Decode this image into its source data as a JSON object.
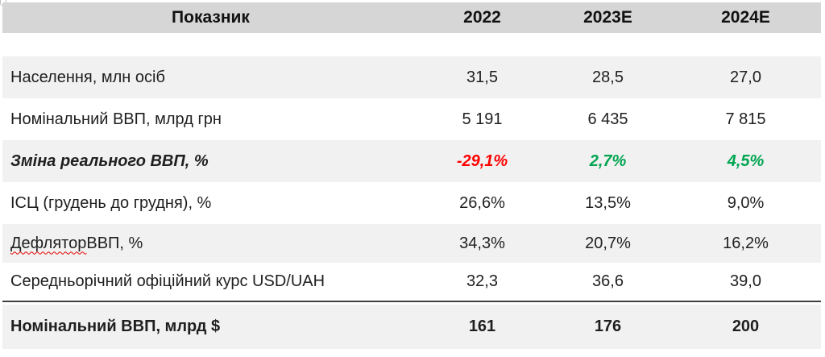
{
  "colors": {
    "header_bg": "#d6d6d6",
    "stripe_bg": "#f1f1f1",
    "white_bg": "#ffffff",
    "negative": "#ff0000",
    "positive": "#00a550",
    "divider": "#3f3f3f",
    "spellcheck_underline": "#e60000"
  },
  "header": {
    "indicator": "Показник",
    "col_2022": "2022",
    "col_2023": "2023E",
    "col_2024": "2024E"
  },
  "rows": [
    {
      "indicator": "Населення, млн осіб",
      "v2022": "31,5",
      "v2023": "28,5",
      "v2024": "27,0"
    },
    {
      "indicator": "Номінальний ВВП, млрд грн",
      "v2022": "5 191",
      "v2023": "6 435",
      "v2024": "7 815"
    },
    {
      "indicator": "Зміна реального ВВП, %",
      "v2022": "-29,1%",
      "v2023": "2,7%",
      "v2024": "4,5%"
    },
    {
      "indicator": "ІСЦ (грудень до грудня), %",
      "v2022": "26,6%",
      "v2023": "13,5%",
      "v2024": "9,0%"
    },
    {
      "indicator_word": "Дефлятор",
      "indicator_rest": " ВВП, %",
      "v2022": "34,3%",
      "v2023": "20,7%",
      "v2024": "16,2%"
    },
    {
      "indicator": "Середньорічний офіційний курс USD/UAH",
      "v2022": "32,3",
      "v2023": "36,6",
      "v2024": "39,0"
    },
    {
      "indicator": "Номінальний ВВП, млрд $",
      "v2022": "161",
      "v2023": "176",
      "v2024": "200"
    }
  ]
}
